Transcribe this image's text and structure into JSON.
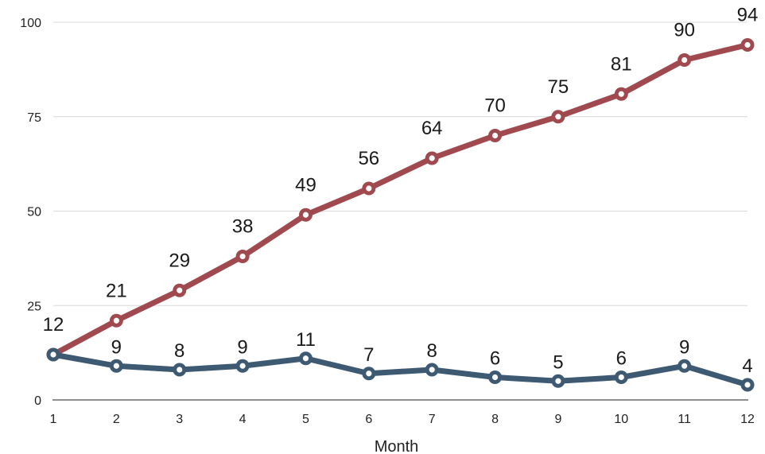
{
  "chart_data": {
    "type": "line",
    "title": "",
    "xlabel": "Month",
    "ylabel": "",
    "categories": [
      "1",
      "2",
      "3",
      "4",
      "5",
      "6",
      "7",
      "8",
      "9",
      "10",
      "11",
      "12"
    ],
    "ylim": [
      0,
      100
    ],
    "yticks": [
      0,
      25,
      50,
      75,
      100
    ],
    "grid": true,
    "legend": "none",
    "series": [
      {
        "values": [
          12,
          21,
          29,
          38,
          49,
          56,
          64,
          70,
          75,
          81,
          90,
          94
        ],
        "color": "#a04a4f"
      },
      {
        "values": [
          12,
          9,
          8,
          9,
          11,
          7,
          8,
          6,
          5,
          6,
          9,
          4
        ],
        "color": "#3e5a72"
      }
    ]
  }
}
